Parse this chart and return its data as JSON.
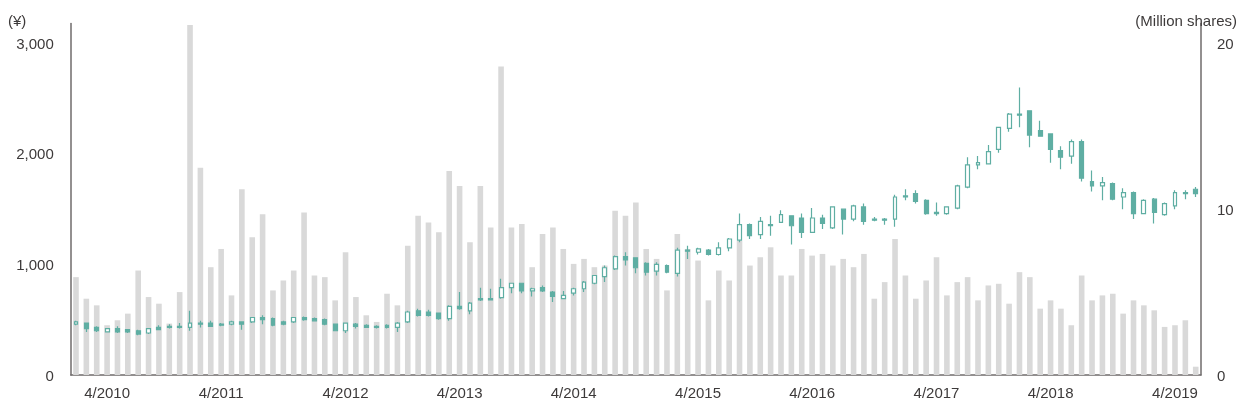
{
  "chart_data": {
    "type": "candlestick",
    "categories": [
      null,
      null,
      null,
      "4/2010",
      null,
      null,
      null,
      null,
      null,
      null,
      null,
      null,
      null,
      null,
      "4/2011",
      null,
      null,
      null,
      null,
      null,
      null,
      null,
      null,
      null,
      null,
      null,
      "4/2012",
      null,
      null,
      null,
      null,
      null,
      null,
      null,
      null,
      null,
      null,
      "4/2013",
      null,
      null,
      null,
      null,
      null,
      null,
      null,
      null,
      null,
      null,
      "4/2014",
      null,
      null,
      null,
      null,
      null,
      null,
      null,
      null,
      null,
      null,
      null,
      "4/2015",
      null,
      null,
      null,
      null,
      null,
      null,
      null,
      null,
      null,
      null,
      "4/2016",
      null,
      null,
      null,
      null,
      null,
      null,
      null,
      null,
      null,
      null,
      null,
      "4/2017",
      null,
      null,
      null,
      null,
      null,
      null,
      null,
      null,
      null,
      null,
      "4/2018",
      null,
      null,
      null,
      null,
      null,
      null,
      null,
      null,
      null,
      null,
      null,
      "4/2019",
      null,
      null
    ],
    "ylabel": "(¥)",
    "y2label": "(Million shares)",
    "ylim": [
      0,
      3180
    ],
    "yticks": [
      0,
      {
        "value": 1000,
        "label": "1,000"
      },
      {
        "value": 2000,
        "label": "2,000"
      },
      {
        "value": 3000,
        "label": "3,000"
      }
    ],
    "y2lim": [
      0,
      21.2
    ],
    "y2ticks": [
      0,
      10,
      20
    ],
    "series": [
      {
        "type": "bar",
        "axis": "y2",
        "color": "#d9d9d9",
        "values": [
          5.9,
          4.6,
          4.2,
          3.0,
          3.3,
          3.7,
          6.3,
          4.7,
          4.3,
          3.1,
          5.0,
          21.1,
          12.5,
          6.5,
          7.6,
          4.8,
          11.2,
          8.3,
          9.7,
          5.1,
          5.7,
          6.3,
          9.8,
          6.0,
          5.9,
          4.5,
          7.4,
          4.7,
          3.6,
          3.2,
          4.9,
          4.2,
          7.8,
          9.6,
          9.2,
          8.6,
          12.3,
          11.4,
          8.0,
          11.4,
          8.9,
          18.6,
          8.9,
          9.1,
          6.5,
          8.5,
          8.9,
          7.6,
          6.7,
          7.0,
          6.5,
          6.6,
          9.9,
          9.6,
          10.4,
          7.6,
          7.0,
          5.1,
          8.5,
          7.6,
          6.9,
          4.5,
          6.3,
          5.7,
          8.1,
          6.6,
          7.1,
          7.7,
          6.0,
          6.0,
          7.6,
          7.2,
          7.3,
          6.6,
          7.0,
          6.5,
          7.3,
          4.6,
          5.6,
          8.2,
          6.0,
          4.6,
          5.7,
          7.1,
          4.8,
          5.6,
          5.9,
          4.5,
          5.4,
          5.5,
          4.3,
          6.2,
          5.9,
          4.0,
          4.5,
          4.0,
          3.0,
          6.0,
          4.5,
          4.8,
          4.9,
          3.7,
          4.5,
          4.2,
          3.9,
          2.9,
          3.0,
          3.3,
          0.5
        ]
      },
      {
        "color": "#5faea3",
        "ohlc": [
          [
            460,
            490,
            450,
            480
          ],
          [
            470,
            470,
            390,
            420
          ],
          [
            430,
            440,
            390,
            400
          ],
          [
            390,
            420,
            390,
            420
          ],
          [
            420,
            440,
            380,
            390
          ],
          [
            410,
            410,
            380,
            390
          ],
          [
            400,
            410,
            360,
            370
          ],
          [
            380,
            420,
            370,
            420
          ],
          [
            430,
            450,
            410,
            410
          ],
          [
            440,
            460,
            420,
            430
          ],
          [
            440,
            470,
            420,
            430
          ],
          [
            430,
            580,
            400,
            470
          ],
          [
            470,
            490,
            430,
            460
          ],
          [
            470,
            490,
            440,
            440
          ],
          [
            460,
            470,
            440,
            450
          ],
          [
            460,
            490,
            450,
            480
          ],
          [
            480,
            480,
            410,
            460
          ],
          [
            480,
            520,
            470,
            520
          ],
          [
            520,
            540,
            460,
            500
          ],
          [
            510,
            520,
            440,
            450
          ],
          [
            480,
            490,
            450,
            460
          ],
          [
            480,
            520,
            470,
            520
          ],
          [
            520,
            530,
            490,
            500
          ],
          [
            510,
            520,
            490,
            490
          ],
          [
            500,
            510,
            450,
            460
          ],
          [
            460,
            460,
            400,
            400
          ],
          [
            400,
            470,
            380,
            470
          ],
          [
            460,
            470,
            420,
            440
          ],
          [
            450,
            460,
            430,
            430
          ],
          [
            440,
            450,
            420,
            430
          ],
          [
            450,
            460,
            420,
            430
          ],
          [
            430,
            480,
            390,
            470
          ],
          [
            480,
            580,
            470,
            570
          ],
          [
            580,
            600,
            530,
            540
          ],
          [
            570,
            590,
            530,
            540
          ],
          [
            560,
            560,
            500,
            510
          ],
          [
            510,
            630,
            490,
            620
          ],
          [
            620,
            750,
            590,
            600
          ],
          [
            580,
            660,
            550,
            650
          ],
          [
            690,
            790,
            670,
            680
          ],
          [
            690,
            780,
            680,
            680
          ],
          [
            700,
            870,
            690,
            790
          ],
          [
            790,
            830,
            740,
            830
          ],
          [
            830,
            830,
            740,
            760
          ],
          [
            760,
            790,
            710,
            780
          ],
          [
            790,
            810,
            750,
            760
          ],
          [
            750,
            760,
            660,
            710
          ],
          [
            690,
            760,
            690,
            720
          ],
          [
            740,
            790,
            720,
            780
          ],
          [
            780,
            850,
            750,
            840
          ],
          [
            830,
            900,
            820,
            900
          ],
          [
            890,
            990,
            840,
            970
          ],
          [
            960,
            1080,
            950,
            1070
          ],
          [
            1070,
            1110,
            990,
            1040
          ],
          [
            1060,
            1060,
            920,
            970
          ],
          [
            1010,
            1020,
            900,
            930
          ],
          [
            940,
            1020,
            900,
            1000
          ],
          [
            990,
            1000,
            920,
            930
          ],
          [
            920,
            1150,
            890,
            1130
          ],
          [
            1130,
            1170,
            1050,
            1120
          ],
          [
            1110,
            1150,
            1090,
            1140
          ],
          [
            1130,
            1140,
            1080,
            1090
          ],
          [
            1090,
            1200,
            1080,
            1150
          ],
          [
            1150,
            1240,
            1120,
            1230
          ],
          [
            1220,
            1460,
            1200,
            1360
          ],
          [
            1360,
            1370,
            1230,
            1260
          ],
          [
            1270,
            1430,
            1230,
            1390
          ],
          [
            1360,
            1440,
            1260,
            1350
          ],
          [
            1380,
            1490,
            1380,
            1450
          ],
          [
            1440,
            1440,
            1180,
            1350
          ],
          [
            1420,
            1460,
            1240,
            1290
          ],
          [
            1290,
            1510,
            1290,
            1420
          ],
          [
            1420,
            1450,
            1320,
            1370
          ],
          [
            1330,
            1520,
            1320,
            1520
          ],
          [
            1500,
            1500,
            1270,
            1410
          ],
          [
            1410,
            1540,
            1390,
            1530
          ],
          [
            1520,
            1550,
            1360,
            1390
          ],
          [
            1410,
            1430,
            1390,
            1400
          ],
          [
            1410,
            1420,
            1360,
            1400
          ],
          [
            1410,
            1630,
            1340,
            1610
          ],
          [
            1620,
            1680,
            1580,
            1610
          ],
          [
            1640,
            1670,
            1550,
            1570
          ],
          [
            1580,
            1590,
            1450,
            1460
          ],
          [
            1470,
            1560,
            1440,
            1460
          ],
          [
            1460,
            1520,
            1450,
            1520
          ],
          [
            1510,
            1720,
            1500,
            1710
          ],
          [
            1700,
            1970,
            1690,
            1900
          ],
          [
            1900,
            1980,
            1860,
            1920
          ],
          [
            1910,
            2080,
            1910,
            2020
          ],
          [
            2040,
            2240,
            2010,
            2240
          ],
          [
            2230,
            2370,
            2200,
            2360
          ],
          [
            2360,
            2600,
            2240,
            2350
          ],
          [
            2390,
            2390,
            2060,
            2170
          ],
          [
            2210,
            2300,
            2160,
            2160
          ],
          [
            2180,
            2180,
            1920,
            2040
          ],
          [
            2030,
            2070,
            1860,
            1970
          ],
          [
            1980,
            2130,
            1910,
            2110
          ],
          [
            2110,
            2130,
            1750,
            1780
          ],
          [
            1750,
            1850,
            1660,
            1710
          ],
          [
            1710,
            1790,
            1580,
            1740
          ],
          [
            1730,
            1740,
            1580,
            1590
          ],
          [
            1610,
            1690,
            1500,
            1650
          ],
          [
            1650,
            1660,
            1410,
            1460
          ],
          [
            1460,
            1590,
            1460,
            1580
          ],
          [
            1590,
            1600,
            1370,
            1470
          ],
          [
            1450,
            1560,
            1440,
            1550
          ],
          [
            1530,
            1670,
            1500,
            1650
          ],
          [
            1650,
            1670,
            1590,
            1640
          ],
          [
            1680,
            1700,
            1610,
            1640
          ]
        ]
      }
    ]
  }
}
